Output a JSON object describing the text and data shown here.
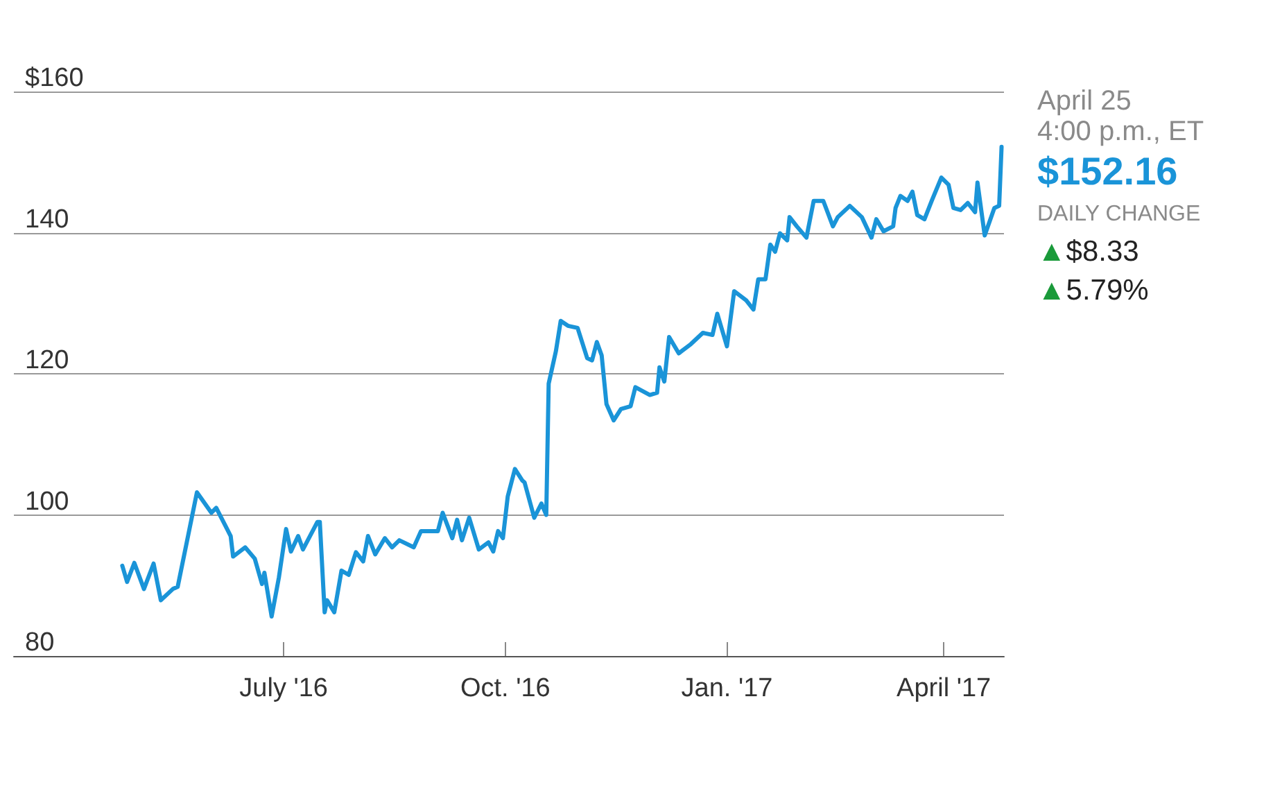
{
  "chart_data": {
    "type": "line",
    "x": [
      "2016-04-25",
      "2016-04-27",
      "2016-04-30",
      "2016-05-04",
      "2016-05-08",
      "2016-05-11",
      "2016-05-16",
      "2016-05-18",
      "2016-05-26",
      "2016-06-01",
      "2016-06-03",
      "2016-06-09",
      "2016-06-10",
      "2016-06-15",
      "2016-06-19",
      "2016-06-22",
      "2016-06-23",
      "2016-06-26",
      "2016-06-29",
      "2016-07-02",
      "2016-07-04",
      "2016-07-07",
      "2016-07-09",
      "2016-07-15",
      "2016-07-16",
      "2016-07-18",
      "2016-07-19",
      "2016-07-22",
      "2016-07-25",
      "2016-07-28",
      "2016-07-31",
      "2016-08-03",
      "2016-08-05",
      "2016-08-08",
      "2016-08-12",
      "2016-08-15",
      "2016-08-18",
      "2016-08-24",
      "2016-08-27",
      "2016-09-03",
      "2016-09-05",
      "2016-09-09",
      "2016-09-11",
      "2016-09-13",
      "2016-09-16",
      "2016-09-20",
      "2016-09-24",
      "2016-09-26",
      "2016-09-28",
      "2016-09-30",
      "2016-10-02",
      "2016-10-05",
      "2016-10-08",
      "2016-10-09",
      "2016-10-13",
      "2016-10-16",
      "2016-10-18",
      "2016-10-19",
      "2016-10-22",
      "2016-10-24",
      "2016-10-27",
      "2016-10-31",
      "2016-11-04",
      "2016-11-06",
      "2016-11-08",
      "2016-11-10",
      "2016-11-12",
      "2016-11-15",
      "2016-11-18",
      "2016-11-22",
      "2016-11-24",
      "2016-11-30",
      "2016-12-03",
      "2016-12-04",
      "2016-12-06",
      "2016-12-08",
      "2016-12-12",
      "2016-12-17",
      "2016-12-22",
      "2016-12-26",
      "2016-12-28",
      "2017-01-01",
      "2017-01-04",
      "2017-01-09",
      "2017-01-12",
      "2017-01-14",
      "2017-01-17",
      "2017-01-19",
      "2017-01-21",
      "2017-01-23",
      "2017-01-26",
      "2017-01-27",
      "2017-01-30",
      "2017-02-03",
      "2017-02-06",
      "2017-02-10",
      "2017-02-14",
      "2017-02-16",
      "2017-02-21",
      "2017-02-26",
      "2017-03-02",
      "2017-03-04",
      "2017-03-07",
      "2017-03-11",
      "2017-03-12",
      "2017-03-14",
      "2017-03-17",
      "2017-03-19",
      "2017-03-21",
      "2017-03-24",
      "2017-03-27",
      "2017-03-31",
      "2017-04-03",
      "2017-04-05",
      "2017-04-08",
      "2017-04-11",
      "2017-04-14",
      "2017-04-15",
      "2017-04-18",
      "2017-04-22",
      "2017-04-24",
      "2017-04-25"
    ],
    "series": [
      {
        "color": "#1a94d8",
        "values": [
          92.8,
          90.5,
          93.2,
          89.5,
          93.1,
          87.9,
          89.5,
          89.8,
          103.2,
          100.3,
          101,
          97,
          94.1,
          95.4,
          93.8,
          90.2,
          91.8,
          85.6,
          91.1,
          98,
          94.8,
          97,
          95.1,
          99,
          99,
          86.2,
          87.9,
          86.2,
          92.1,
          91.5,
          94.7,
          93.4,
          97,
          94.4,
          96.7,
          95.4,
          96.4,
          95.4,
          97.7,
          97.7,
          100.3,
          96.7,
          99.3,
          96.4,
          99.6,
          95.1,
          96.1,
          94.8,
          97.7,
          96.7,
          102.6,
          106.5,
          104.9,
          104.6,
          99.6,
          101.6,
          100,
          118.6,
          123.2,
          127.5,
          126.8,
          126.5,
          122.2,
          121.9,
          124.5,
          122.6,
          115.7,
          113.4,
          115,
          115.4,
          118.1,
          117,
          117.3,
          120.9,
          118.9,
          125.2,
          122.9,
          124.2,
          125.8,
          125.5,
          128.5,
          123.9,
          131.7,
          130.4,
          129.1,
          133.4,
          133.4,
          138.3,
          137.3,
          139.9,
          138.9,
          142.2,
          140.9,
          139.3,
          144.5,
          144.5,
          140.9,
          142.2,
          143.8,
          142.2,
          139.3,
          141.9,
          140.2,
          140.9,
          143.5,
          145.2,
          144.5,
          145.8,
          142.5,
          141.9,
          144.5,
          147.8,
          146.8,
          143.5,
          143.2,
          144.2,
          142.9,
          147.1,
          139.6,
          143.5,
          143.8,
          152.16
        ]
      }
    ],
    "xlim": [
      "2016-03-11",
      "2017-04-26"
    ],
    "xticks": [
      {
        "value": "2016-07-01",
        "label": "July '16"
      },
      {
        "value": "2016-10-01",
        "label": "Oct. '16"
      },
      {
        "value": "2017-01-01",
        "label": "Jan. '17"
      },
      {
        "value": "2017-04-01",
        "label": "April '17"
      }
    ],
    "ylim": [
      80,
      160
    ],
    "yticks": [
      80,
      100,
      120,
      140,
      {
        "value": 160,
        "label": "$160"
      }
    ],
    "grid": "y",
    "marker": "none",
    "line_style": "solid",
    "annotations": [
      "April 25",
      "4:00 p.m., ET",
      "$152.16",
      "DAILY CHANGE",
      "▲$8.33",
      "▲5.79%"
    ]
  }
}
